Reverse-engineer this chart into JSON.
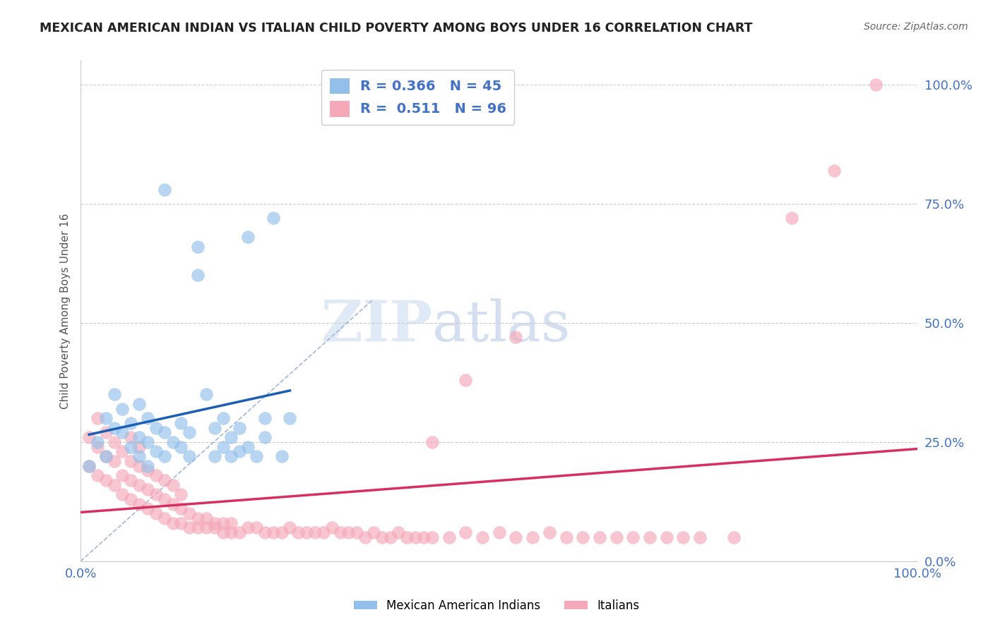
{
  "title": "MEXICAN AMERICAN INDIAN VS ITALIAN CHILD POVERTY AMONG BOYS UNDER 16 CORRELATION CHART",
  "source": "Source: ZipAtlas.com",
  "ylabel": "Child Poverty Among Boys Under 16",
  "watermark_zip": "ZIP",
  "watermark_atlas": "atlas",
  "blue_label": "Mexican American Indians",
  "pink_label": "Italians",
  "blue_R": "0.366",
  "blue_N": "45",
  "pink_R": "0.511",
  "pink_N": "96",
  "blue_color": "#92c0ea",
  "pink_color": "#f4a8b8",
  "blue_line_color": "#1a5fb4",
  "pink_line_color": "#d63060",
  "diag_color": "#a0b8d8",
  "background": "#ffffff",
  "blue_scatter_x": [
    0.01,
    0.02,
    0.03,
    0.03,
    0.04,
    0.04,
    0.05,
    0.05,
    0.06,
    0.06,
    0.07,
    0.07,
    0.07,
    0.08,
    0.08,
    0.08,
    0.09,
    0.09,
    0.1,
    0.1,
    0.1,
    0.11,
    0.12,
    0.12,
    0.13,
    0.13,
    0.14,
    0.14,
    0.15,
    0.16,
    0.16,
    0.17,
    0.17,
    0.18,
    0.18,
    0.19,
    0.19,
    0.2,
    0.2,
    0.21,
    0.22,
    0.22,
    0.23,
    0.24,
    0.25
  ],
  "blue_scatter_y": [
    0.2,
    0.25,
    0.3,
    0.22,
    0.28,
    0.35,
    0.27,
    0.32,
    0.24,
    0.29,
    0.22,
    0.26,
    0.33,
    0.2,
    0.25,
    0.3,
    0.23,
    0.28,
    0.22,
    0.27,
    0.78,
    0.25,
    0.24,
    0.29,
    0.22,
    0.27,
    0.6,
    0.66,
    0.35,
    0.22,
    0.28,
    0.24,
    0.3,
    0.22,
    0.26,
    0.23,
    0.28,
    0.24,
    0.68,
    0.22,
    0.26,
    0.3,
    0.72,
    0.22,
    0.3
  ],
  "pink_scatter_x": [
    0.01,
    0.01,
    0.02,
    0.02,
    0.02,
    0.03,
    0.03,
    0.03,
    0.04,
    0.04,
    0.04,
    0.05,
    0.05,
    0.05,
    0.06,
    0.06,
    0.06,
    0.06,
    0.07,
    0.07,
    0.07,
    0.07,
    0.08,
    0.08,
    0.08,
    0.09,
    0.09,
    0.09,
    0.1,
    0.1,
    0.1,
    0.11,
    0.11,
    0.11,
    0.12,
    0.12,
    0.12,
    0.13,
    0.13,
    0.14,
    0.14,
    0.15,
    0.15,
    0.16,
    0.16,
    0.17,
    0.17,
    0.18,
    0.18,
    0.19,
    0.2,
    0.21,
    0.22,
    0.23,
    0.24,
    0.25,
    0.26,
    0.27,
    0.28,
    0.29,
    0.3,
    0.31,
    0.32,
    0.33,
    0.34,
    0.35,
    0.36,
    0.37,
    0.38,
    0.39,
    0.4,
    0.41,
    0.42,
    0.44,
    0.46,
    0.48,
    0.5,
    0.52,
    0.54,
    0.56,
    0.58,
    0.6,
    0.62,
    0.64,
    0.66,
    0.68,
    0.7,
    0.72,
    0.74,
    0.78,
    0.46,
    0.52,
    0.42,
    0.85,
    0.9,
    0.95
  ],
  "pink_scatter_y": [
    0.2,
    0.26,
    0.18,
    0.24,
    0.3,
    0.17,
    0.22,
    0.27,
    0.16,
    0.21,
    0.25,
    0.14,
    0.18,
    0.23,
    0.13,
    0.17,
    0.21,
    0.26,
    0.12,
    0.16,
    0.2,
    0.24,
    0.11,
    0.15,
    0.19,
    0.1,
    0.14,
    0.18,
    0.09,
    0.13,
    0.17,
    0.08,
    0.12,
    0.16,
    0.08,
    0.11,
    0.14,
    0.07,
    0.1,
    0.07,
    0.09,
    0.07,
    0.09,
    0.07,
    0.08,
    0.06,
    0.08,
    0.06,
    0.08,
    0.06,
    0.07,
    0.07,
    0.06,
    0.06,
    0.06,
    0.07,
    0.06,
    0.06,
    0.06,
    0.06,
    0.07,
    0.06,
    0.06,
    0.06,
    0.05,
    0.06,
    0.05,
    0.05,
    0.06,
    0.05,
    0.05,
    0.05,
    0.05,
    0.05,
    0.06,
    0.05,
    0.06,
    0.05,
    0.05,
    0.06,
    0.05,
    0.05,
    0.05,
    0.05,
    0.05,
    0.05,
    0.05,
    0.05,
    0.05,
    0.05,
    0.38,
    0.47,
    0.25,
    0.72,
    0.82,
    1.0
  ],
  "grid_color": "#cccccc",
  "diag_linestyle": "--"
}
